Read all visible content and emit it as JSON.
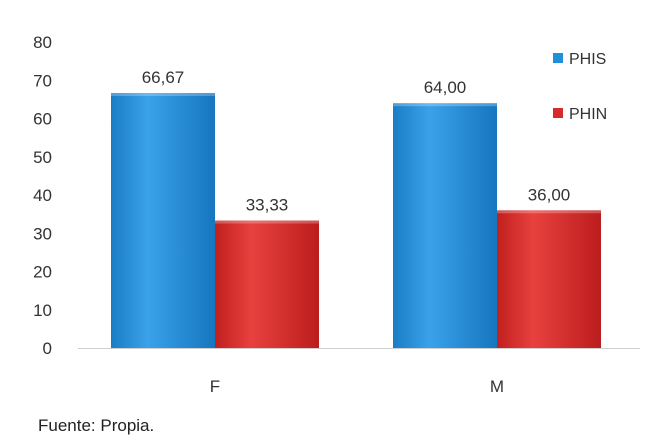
{
  "chart_data": {
    "type": "bar",
    "categories": [
      "F",
      "M"
    ],
    "series": [
      {
        "name": "PHIS",
        "values": [
          66.67,
          64.0
        ],
        "labels": [
          "66,67",
          "64,00"
        ],
        "color": "#1f8fd8"
      },
      {
        "name": "PHIN",
        "values": [
          33.33,
          36.0
        ],
        "labels": [
          "33,33",
          "36,00"
        ],
        "color": "#d8292b"
      }
    ],
    "title": "",
    "xlabel": "",
    "ylabel": "",
    "ylim": [
      0,
      80
    ],
    "yticks": [
      0,
      10,
      20,
      30,
      40,
      50,
      60,
      70,
      80
    ],
    "grid": false,
    "legend_position": "top-right"
  },
  "source_note": "Fuente: Propia."
}
